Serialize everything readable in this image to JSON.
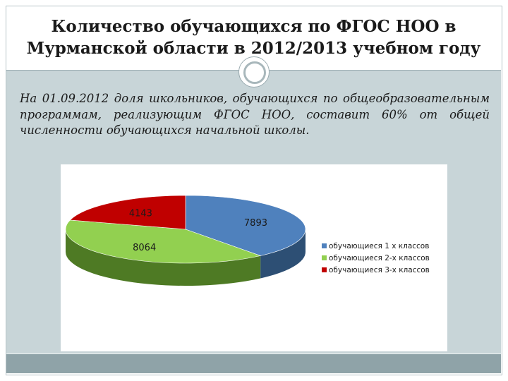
{
  "slide": {
    "title_line1": "Количество обучающихся по ФГОС НОО в",
    "title_line2": "Мурманской области в 2012/2013 учебном году",
    "paragraph": "На 01.09.2012 доля школьников, обучающихся по общеобразовательным программам, реализующим ФГОС НОО, составит 60% от общей численности обучающихся начальной школы."
  },
  "colors": {
    "series1": "#4f81bd",
    "series1_side": "#2d4f74",
    "series2": "#92d050",
    "series2_side": "#4e7a24",
    "series3": "#c00000",
    "series3_side": "#7a0000"
  },
  "chart_data": {
    "type": "pie",
    "style": "3d",
    "categories": [
      "обучающиеся 1 х классов",
      "обучающиеся 2-х классов",
      "обучающиеся 3-х классов"
    ],
    "values": [
      7893,
      8064,
      4143
    ],
    "data_labels": [
      "7893",
      "8064",
      "4143"
    ],
    "legend": "right"
  }
}
